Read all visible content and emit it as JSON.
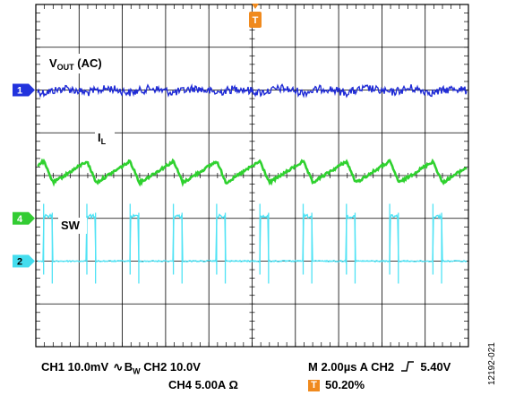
{
  "chart_data": {
    "type": "line",
    "title": "",
    "xlabel": "",
    "ylabel": "",
    "grid": true,
    "horizontal_divisions": 10,
    "vertical_divisions": 8,
    "trigger_marker": "T",
    "trigger_position_percent": 50.2,
    "switching_cycles_on_screen": 10,
    "series": [
      {
        "name": "VOUT (AC)",
        "channel": "1",
        "color": "#1f2bd6",
        "waveform": "output-voltage-ripple",
        "ground_division": 2.0
      },
      {
        "name": "IL",
        "channel": "",
        "color": "#2fd12f",
        "waveform": "inductor-current-sawtooth",
        "ground_division": 4.0
      },
      {
        "name": "SW",
        "channel": "4",
        "color": "#4fe3f5",
        "waveform": "switch-node-pulses",
        "ground_division": 6.0
      }
    ],
    "channel_markers": [
      {
        "label": "1",
        "color": "#2233dd",
        "division": 2.0
      },
      {
        "label": "4",
        "color": "#33cc33",
        "division": 5.0
      },
      {
        "label": "2",
        "color": "#44ddee",
        "division": 6.0
      }
    ],
    "labels": {
      "vout_main": "V",
      "vout_sub": "OUT",
      "vout_suffix": " (AC)",
      "il_main": "I",
      "il_sub": "L",
      "sw": "SW"
    }
  },
  "footer": {
    "ch1": "CH1  10.0mV",
    "bw": "B",
    "bw_sub": "W",
    "ch2": "CH2  10.0V",
    "ch4": "CH4  5.00A Ω",
    "timebase": "M  2.00µs A  CH2",
    "trigger_level": "5.40V",
    "trigger_percent": "50.20%",
    "trigger_badge": "T"
  },
  "figure_id": "12192-021"
}
